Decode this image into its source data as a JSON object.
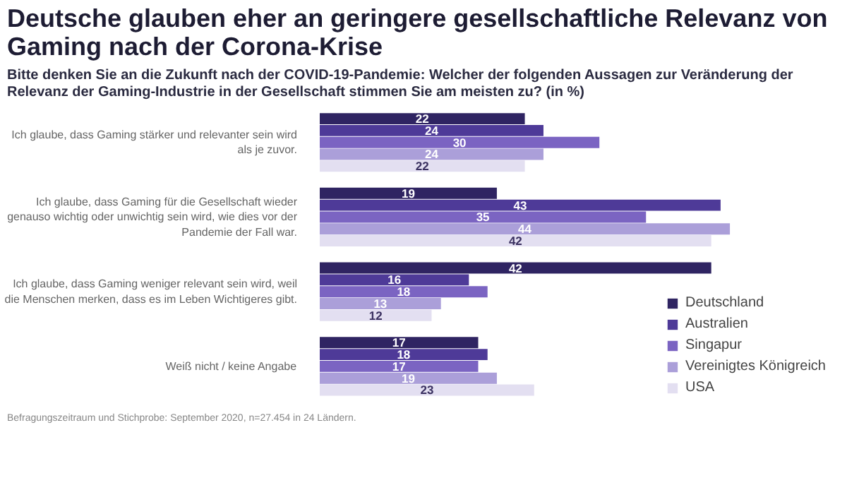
{
  "chart_data": {
    "type": "bar",
    "orientation": "horizontal",
    "title": "Deutsche glauben eher an geringere gesellschaftliche Relevanz von Gaming nach der Corona-Krise",
    "subtitle": "Bitte denken Sie an die Zukunft nach der COVID-19-Pandemie: Welcher der folgenden Aussagen zur Veränderung der Relevanz der Gaming-Industrie in der Gesellschaft stimmen Sie am meisten zu? (in %)",
    "categories": [
      "Ich glaube, dass Gaming stärker und relevanter sein wird als je zuvor.",
      "Ich glaube, dass Gaming für die Gesellschaft wieder genauso wichtig oder unwichtig sein wird, wie dies vor der Pandemie der Fall war.",
      "Ich glaube, dass Gaming weniger relevant sein wird, weil die Menschen merken, dass es im Leben Wichtigeres gibt.",
      "Weiß nicht / keine Angabe"
    ],
    "series": [
      {
        "name": "Deutschland",
        "color": "#2f2462",
        "values": [
          22,
          19,
          42,
          17
        ]
      },
      {
        "name": "Australien",
        "color": "#4e3a98",
        "values": [
          24,
          43,
          16,
          18
        ]
      },
      {
        "name": "Singapur",
        "color": "#7b64c2",
        "values": [
          30,
          35,
          18,
          17
        ]
      },
      {
        "name": "Vereinigtes Königreich",
        "color": "#ab9fd9",
        "values": [
          24,
          44,
          13,
          19
        ]
      },
      {
        "name": "USA",
        "color": "#e3dff1",
        "values": [
          22,
          42,
          12,
          23
        ]
      }
    ],
    "data_labels": true,
    "grid": false,
    "legend": "bottom right",
    "annotations": [
      "Befragungszeitraum und Stichprobe: September 2020, n=27.454 in 24 Ländern."
    ]
  }
}
